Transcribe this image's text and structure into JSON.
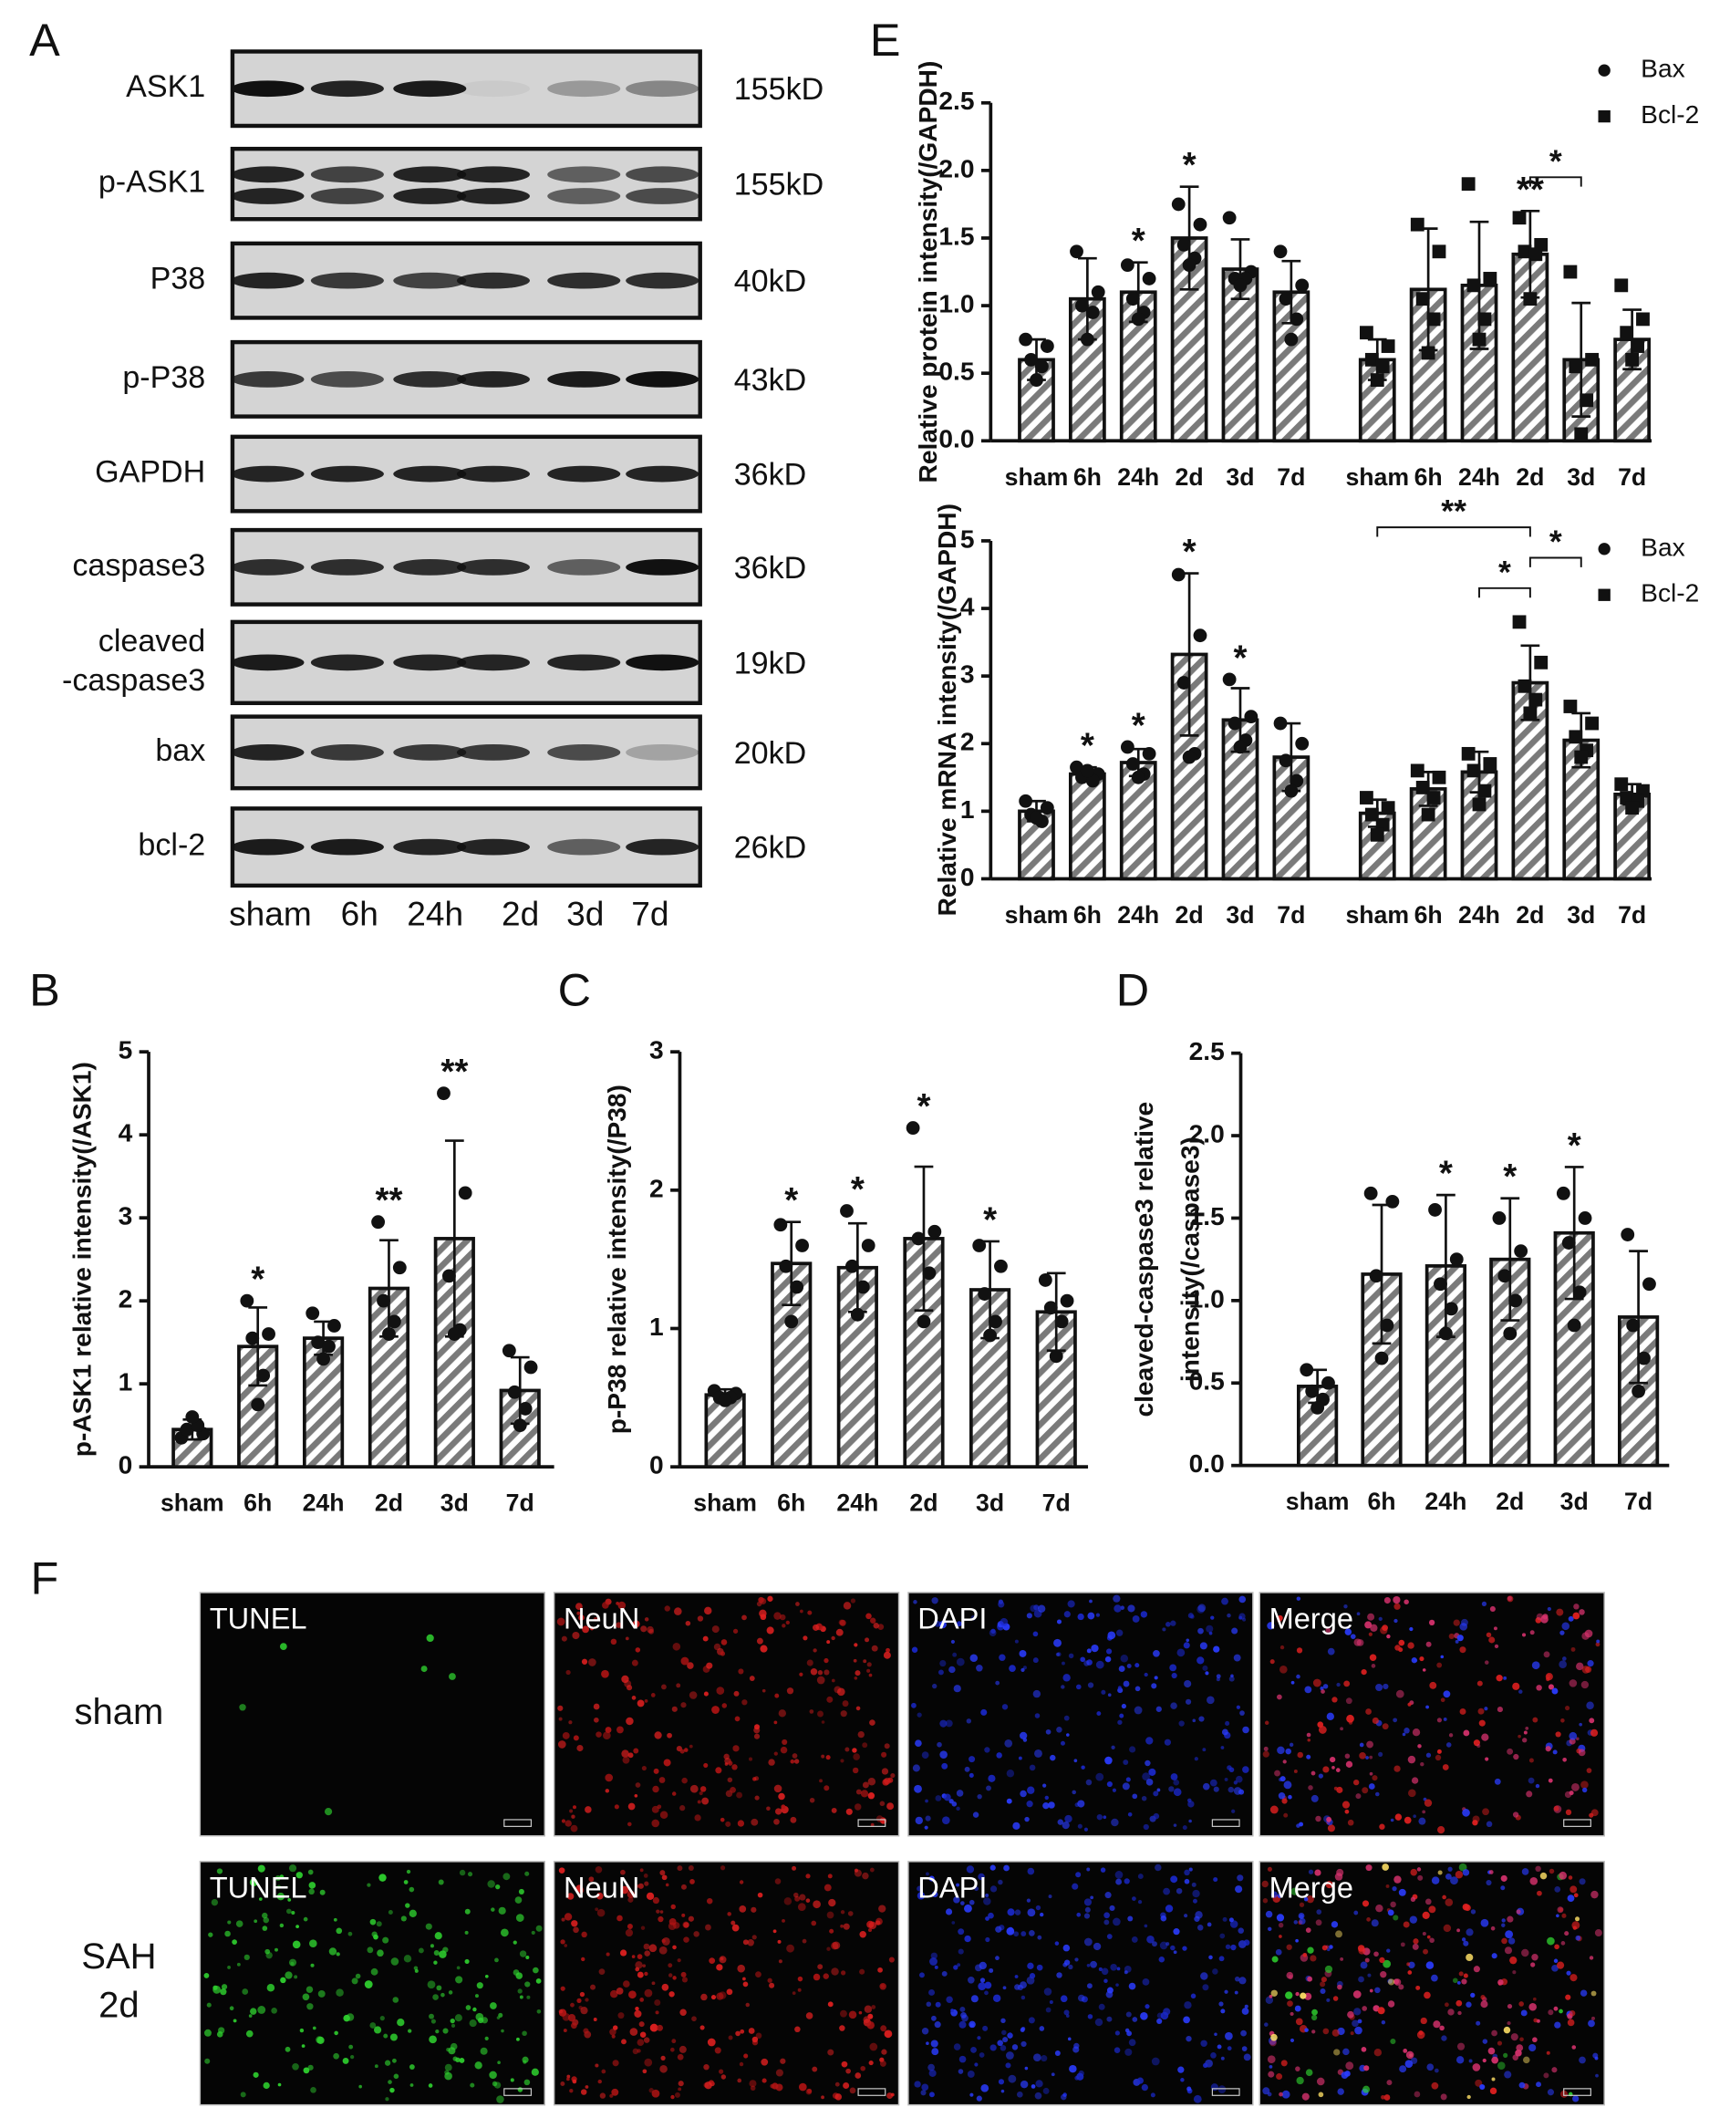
{
  "panel_labels": [
    "A",
    "B",
    "C",
    "D",
    "E",
    "F"
  ],
  "blot": {
    "proteins": [
      [
        "ASK1"
      ],
      [
        "p-ASK1"
      ],
      [
        "P38"
      ],
      [
        "p-P38"
      ],
      [
        "GAPDH"
      ],
      [
        "caspase3"
      ],
      [
        "cleaved",
        "-caspase3"
      ],
      [
        "bax"
      ],
      [
        "bcl-2"
      ]
    ],
    "sizes": [
      "155kD",
      "155kD",
      "40kD",
      "43kD",
      "36kD",
      "36kD",
      "19kD",
      "20kD",
      "26kD"
    ],
    "lanes": [
      "sham",
      "6h",
      "24h",
      "2d",
      "3d",
      "7d"
    ]
  },
  "chart_data": [
    {
      "type": "bar",
      "y_label": [
        "p-ASK1 relative  intensity(/ASK1)"
      ],
      "color": "#7a7a7a",
      "categories": [
        "sham",
        "6h",
        "24h",
        "2d",
        "3d",
        "7d"
      ],
      "values": [
        0.45,
        1.45,
        1.55,
        2.15,
        2.75,
        0.92
      ],
      "errors": [
        0.12,
        0.47,
        0.2,
        0.58,
        1.18,
        0.4
      ],
      "points": [
        [
          0.35,
          0.4,
          0.45,
          0.5,
          0.6
        ],
        [
          2.0,
          1.6,
          1.55,
          1.1,
          0.75
        ],
        [
          1.85,
          1.7,
          1.5,
          1.45,
          1.3
        ],
        [
          2.95,
          2.4,
          2.0,
          1.75,
          1.6
        ],
        [
          4.5,
          3.3,
          2.3,
          1.65,
          1.6
        ],
        [
          1.4,
          1.2,
          0.9,
          0.7,
          0.5
        ]
      ],
      "significance": [
        null,
        "*",
        null,
        "**",
        "**",
        null
      ],
      "ylim": [
        0,
        5
      ],
      "yticks": [
        0,
        1,
        2,
        3,
        4,
        5
      ]
    },
    {
      "type": "bar",
      "y_label": [
        "p-P38 relative  intensity(/P38)"
      ],
      "color": "#7a7a7a",
      "categories": [
        "sham",
        "6h",
        "24h",
        "2d",
        "3d",
        "7d"
      ],
      "values": [
        0.52,
        1.47,
        1.44,
        1.65,
        1.28,
        1.12
      ],
      "errors": [
        0.04,
        0.3,
        0.32,
        0.52,
        0.35,
        0.28
      ],
      "points": [
        [
          0.55,
          0.53,
          0.5,
          0.5,
          0.48
        ],
        [
          1.75,
          1.6,
          1.45,
          1.3,
          1.05
        ],
        [
          1.85,
          1.6,
          1.45,
          1.3,
          1.1
        ],
        [
          2.45,
          1.7,
          1.65,
          1.4,
          1.05
        ],
        [
          1.6,
          1.45,
          1.25,
          1.05,
          0.95
        ],
        [
          1.35,
          1.2,
          1.15,
          1.05,
          0.8
        ]
      ],
      "significance": [
        null,
        "*",
        "*",
        "*",
        "*",
        null
      ],
      "ylim": [
        0,
        3
      ],
      "yticks": [
        0,
        1,
        2,
        3
      ]
    },
    {
      "type": "bar",
      "y_label": [
        "cleaved-caspase3 relative",
        "intensity(/caspase3)"
      ],
      "color": "#7a7a7a",
      "categories": [
        "sham",
        "6h",
        "24h",
        "2d",
        "3d",
        "7d"
      ],
      "values": [
        0.48,
        1.16,
        1.21,
        1.25,
        1.41,
        0.9
      ],
      "errors": [
        0.1,
        0.42,
        0.43,
        0.37,
        0.4,
        0.4
      ],
      "points": [
        [
          0.58,
          0.5,
          0.45,
          0.4,
          0.35
        ],
        [
          1.65,
          1.6,
          1.15,
          0.85,
          0.65
        ],
        [
          1.55,
          1.25,
          1.1,
          0.95,
          0.8
        ],
        [
          1.5,
          1.3,
          1.15,
          1.0,
          0.8
        ],
        [
          1.65,
          1.5,
          1.35,
          1.05,
          0.85
        ],
        [
          1.4,
          1.1,
          0.85,
          0.65,
          0.45
        ]
      ],
      "significance": [
        null,
        null,
        "*",
        "*",
        "*",
        null
      ],
      "ylim": [
        0,
        2.5
      ],
      "yticks": [
        {
          "value": 0,
          "label": "0.0"
        },
        0.5,
        {
          "value": 1,
          "label": "1.0"
        },
        1.5,
        {
          "value": 2,
          "label": "2.0"
        },
        2.5
      ]
    },
    {
      "type": "bar",
      "y_label": [
        "Relative protein intensity(/GAPDH)"
      ],
      "color": "#7a7a7a",
      "legend": "upper right",
      "categories": [
        "sham",
        "6h",
        "24h",
        "2d",
        "3d",
        "7d",
        "sham",
        "6h",
        "24h",
        "2d",
        "3d",
        "7d"
      ],
      "series": [
        {
          "name": "Bax",
          "marker": "circle",
          "values": [
            0.6,
            1.05,
            1.1,
            1.5,
            1.27,
            1.1,
            null,
            null,
            null,
            null,
            null,
            null
          ],
          "errors": [
            0.15,
            0.3,
            0.22,
            0.38,
            0.22,
            0.23,
            null,
            null,
            null,
            null,
            null,
            null
          ],
          "points": [
            [
              0.75,
              0.7,
              0.6,
              0.55,
              0.45
            ],
            [
              1.4,
              1.1,
              1.0,
              0.95,
              0.75
            ],
            [
              1.3,
              1.2,
              1.05,
              0.95,
              0.9
            ],
            [
              1.75,
              1.6,
              1.45,
              1.35,
              1.3
            ],
            [
              1.65,
              1.25,
              1.2,
              1.2,
              1.15
            ],
            [
              1.4,
              1.15,
              1.05,
              0.9,
              0.75
            ],
            null,
            null,
            null,
            null,
            null,
            null
          ],
          "significance": [
            null,
            null,
            "*",
            "*",
            null,
            null,
            null,
            null,
            null,
            null,
            null,
            null
          ]
        },
        {
          "name": "Bcl-2",
          "marker": "square",
          "values": [
            null,
            null,
            null,
            null,
            null,
            null,
            0.6,
            1.12,
            1.15,
            1.38,
            0.6,
            0.75
          ],
          "errors": [
            null,
            null,
            null,
            null,
            null,
            null,
            0.15,
            0.45,
            0.47,
            0.32,
            0.42,
            0.22
          ],
          "points": [
            null,
            null,
            null,
            null,
            null,
            null,
            [
              0.8,
              0.7,
              0.6,
              0.55,
              0.45
            ],
            [
              1.6,
              1.4,
              1.05,
              0.9,
              0.65
            ],
            [
              1.9,
              1.2,
              1.15,
              0.9,
              0.75
            ],
            [
              1.65,
              1.45,
              1.4,
              1.38,
              1.05
            ],
            [
              1.25,
              0.6,
              0.55,
              0.3,
              0.05
            ],
            [
              1.15,
              0.9,
              0.8,
              0.7,
              0.6
            ]
          ],
          "significance": [
            null,
            null,
            null,
            null,
            null,
            null,
            null,
            null,
            null,
            "**",
            null,
            null
          ]
        }
      ],
      "brackets": [
        {
          "from": 9,
          "to": 10,
          "text": "*"
        }
      ],
      "ylim": [
        0,
        2.5
      ],
      "yticks": [
        {
          "value": 0,
          "label": "0.0"
        },
        0.5,
        {
          "value": 1,
          "label": "1.0"
        },
        1.5,
        {
          "value": 2,
          "label": "2.0"
        },
        2.5
      ]
    },
    {
      "type": "bar",
      "y_label": [
        "Relative mRNA intensity(/GAPDH)"
      ],
      "color": "#7a7a7a",
      "legend": "upper right",
      "categories": [
        "sham",
        "6h",
        "24h",
        "2d",
        "3d",
        "7d",
        "sham",
        "6h",
        "24h",
        "2d",
        "3d",
        "7d"
      ],
      "series": [
        {
          "name": "Bax",
          "marker": "circle",
          "values": [
            1.0,
            1.55,
            1.72,
            3.32,
            2.35,
            1.8,
            null,
            null,
            null,
            null,
            null,
            null
          ],
          "errors": [
            0.15,
            0.1,
            0.2,
            1.2,
            0.47,
            0.5,
            null,
            null,
            null,
            null,
            null,
            null
          ],
          "points": [
            [
              1.15,
              1.05,
              0.95,
              0.85,
              0.9
            ],
            [
              1.65,
              1.55,
              1.5,
              1.45,
              1.6
            ],
            [
              1.95,
              1.85,
              1.7,
              1.55,
              1.5
            ],
            [
              4.5,
              3.6,
              2.9,
              1.85,
              1.8
            ],
            [
              2.95,
              2.4,
              2.3,
              2.05,
              1.95
            ],
            [
              2.3,
              2.0,
              1.75,
              1.45,
              1.3
            ],
            null,
            null,
            null,
            null,
            null,
            null
          ],
          "significance": [
            null,
            "*",
            "*",
            "*",
            "*",
            null,
            null,
            null,
            null,
            null,
            null,
            null
          ]
        },
        {
          "name": "Bcl-2",
          "marker": "square",
          "values": [
            null,
            null,
            null,
            null,
            null,
            null,
            0.97,
            1.33,
            1.58,
            2.9,
            2.05,
            1.25
          ],
          "errors": [
            null,
            null,
            null,
            null,
            null,
            null,
            0.2,
            0.25,
            0.3,
            0.55,
            0.4,
            0.15
          ],
          "points": [
            null,
            null,
            null,
            null,
            null,
            null,
            [
              1.2,
              1.05,
              0.95,
              0.8,
              0.65
            ],
            [
              1.6,
              1.5,
              1.35,
              1.2,
              0.95
            ],
            [
              1.85,
              1.7,
              1.6,
              1.3,
              1.1
            ],
            [
              3.8,
              3.2,
              2.85,
              2.65,
              2.45
            ],
            [
              2.55,
              2.3,
              2.1,
              1.9,
              1.8
            ],
            [
              1.4,
              1.3,
              1.2,
              1.15,
              1.05
            ]
          ],
          "significance": [
            null,
            null,
            null,
            null,
            null,
            null,
            null,
            null,
            null,
            null,
            null,
            null
          ]
        }
      ],
      "brackets": [
        {
          "from": 8,
          "to": 9,
          "text": "*"
        },
        {
          "from": 9,
          "to": 10,
          "text": "*"
        },
        {
          "from": 6,
          "to": 9,
          "text": "**"
        }
      ],
      "ylim": [
        0,
        5
      ],
      "yticks": [
        0,
        1,
        2,
        3,
        4,
        5
      ]
    }
  ],
  "images": {
    "rows": [
      {
        "label": [
          "sham"
        ],
        "panels": [
          "TUNEL",
          "NeuN",
          "DAPI",
          "Merge"
        ]
      },
      {
        "label": [
          "SAH",
          "2d"
        ],
        "panels": [
          "TUNEL",
          "NeuN",
          "DAPI",
          "Merge"
        ]
      }
    ]
  }
}
